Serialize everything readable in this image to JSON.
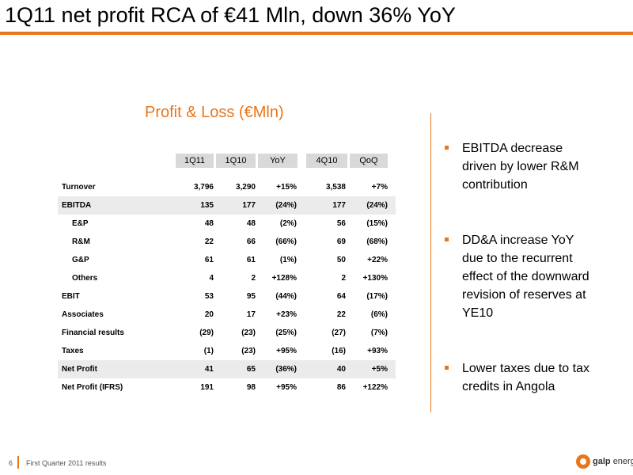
{
  "slide": {
    "title": "1Q11 net profit RCA of €41 Mln, down 36% YoY",
    "table_title": "Profit & Loss (€Mln)",
    "page_number": "6",
    "footer": "First Quarter 2011 results",
    "logo_text_bold": "galp",
    "logo_text_light": "energia"
  },
  "table": {
    "headers": [
      "1Q11",
      "1Q10",
      "YoY",
      "4Q10",
      "QoQ"
    ],
    "rows": [
      {
        "label": "Turnover",
        "v": [
          "3,796",
          "3,290",
          "+15%",
          "3,538",
          "+7%"
        ]
      },
      {
        "label": "EBITDA",
        "v": [
          "135",
          "177",
          "(24%)",
          "177",
          "(24%)"
        ]
      },
      {
        "label": "E&P",
        "v": [
          "48",
          "48",
          "(2%)",
          "56",
          "(15%)"
        ]
      },
      {
        "label": "R&M",
        "v": [
          "22",
          "66",
          "(66%)",
          "69",
          "(68%)"
        ]
      },
      {
        "label": "G&P",
        "v": [
          "61",
          "61",
          "(1%)",
          "50",
          "+22%"
        ]
      },
      {
        "label": "Others",
        "v": [
          "4",
          "2",
          "+128%",
          "2",
          "+130%"
        ]
      },
      {
        "label": "EBIT",
        "v": [
          "53",
          "95",
          "(44%)",
          "64",
          "(17%)"
        ]
      },
      {
        "label": "Associates",
        "v": [
          "20",
          "17",
          "+23%",
          "22",
          "(6%)"
        ]
      },
      {
        "label": "Financial results",
        "v": [
          "(29)",
          "(23)",
          "(25%)",
          "(27)",
          "(7%)"
        ]
      },
      {
        "label": "Taxes",
        "v": [
          "(1)",
          "(23)",
          "+95%",
          "(16)",
          "+93%"
        ]
      },
      {
        "label": "Net Profit",
        "v": [
          "41",
          "65",
          "(36%)",
          "40",
          "+5%"
        ]
      },
      {
        "label": "Net Profit (IFRS)",
        "v": [
          "191",
          "98",
          "+95%",
          "86",
          "+122%"
        ]
      }
    ]
  },
  "bullets": [
    "EBITDA decrease driven by lower R&M contribution",
    "DD&A increase YoY due to the recurrent effect of the downward revision of reserves at YE10",
    "Lower taxes due to tax credits in Angola"
  ],
  "colors": {
    "accent": "#e8761c",
    "header_fill": "#d9d9d9",
    "row_shade": "#ebebeb"
  }
}
